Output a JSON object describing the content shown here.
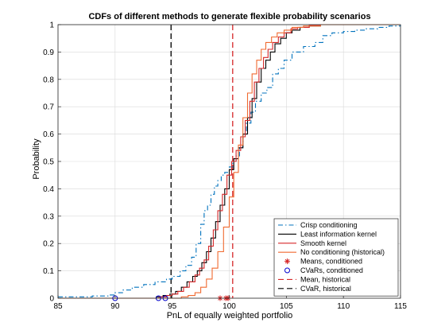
{
  "chart_data": {
    "type": "line",
    "title": "CDFs of different methods to generate flexible probability scenarios",
    "xlabel": "PnL of equally weighted portfolio",
    "ylabel": "Probability",
    "xlim": [
      85,
      115
    ],
    "ylim": [
      0,
      1
    ],
    "xticks": [
      "85",
      "90",
      "95",
      "100",
      "105",
      "110",
      "115"
    ],
    "yticks": [
      "0",
      "0.1",
      "0.2",
      "0.3",
      "0.4",
      "0.5",
      "0.6",
      "0.7",
      "0.8",
      "0.9",
      "1"
    ],
    "grid": true,
    "legend_position": "bottom-right",
    "series": [
      {
        "name": "Crisp conditioning",
        "color": "#0072BD",
        "style": "dash-dot",
        "points": [
          [
            85,
            0.005
          ],
          [
            88,
            0.008
          ],
          [
            89.5,
            0.012
          ],
          [
            90,
            0.02
          ],
          [
            90.7,
            0.03
          ],
          [
            91.5,
            0.04
          ],
          [
            92.5,
            0.05
          ],
          [
            93.5,
            0.06
          ],
          [
            94.5,
            0.07
          ],
          [
            95,
            0.08
          ],
          [
            95.7,
            0.1
          ],
          [
            96.2,
            0.12
          ],
          [
            96.7,
            0.15
          ],
          [
            97.1,
            0.2
          ],
          [
            97.5,
            0.27
          ],
          [
            97.8,
            0.32
          ],
          [
            98.1,
            0.34
          ],
          [
            98.4,
            0.38
          ],
          [
            98.7,
            0.41
          ],
          [
            99,
            0.43
          ],
          [
            99.3,
            0.45
          ],
          [
            99.6,
            0.46
          ],
          [
            100,
            0.48
          ],
          [
            100.3,
            0.5
          ],
          [
            100.6,
            0.52
          ],
          [
            100.9,
            0.55
          ],
          [
            101.2,
            0.6
          ],
          [
            101.5,
            0.64
          ],
          [
            101.9,
            0.68
          ],
          [
            102.3,
            0.72
          ],
          [
            102.8,
            0.75
          ],
          [
            103.3,
            0.77
          ],
          [
            103.8,
            0.82
          ],
          [
            104.3,
            0.84
          ],
          [
            104.8,
            0.87
          ],
          [
            105.5,
            0.9
          ],
          [
            106.5,
            0.92
          ],
          [
            107.5,
            0.935
          ],
          [
            108.2,
            0.96
          ],
          [
            109,
            0.97
          ],
          [
            110,
            0.975
          ],
          [
            111,
            0.98
          ],
          [
            112,
            0.985
          ],
          [
            113,
            0.99
          ],
          [
            114,
            0.995
          ],
          [
            115,
            1
          ]
        ]
      },
      {
        "name": "Least information kernel",
        "color": "#000000",
        "style": "solid",
        "points": [
          [
            85,
            0
          ],
          [
            93,
            0
          ],
          [
            93.6,
            0.005
          ],
          [
            94.2,
            0.01
          ],
          [
            94.8,
            0.015
          ],
          [
            95.3,
            0.025
          ],
          [
            95.8,
            0.04
          ],
          [
            96.3,
            0.06
          ],
          [
            96.8,
            0.08
          ],
          [
            97.2,
            0.1
          ],
          [
            97.6,
            0.13
          ],
          [
            98,
            0.17
          ],
          [
            98.4,
            0.22
          ],
          [
            98.8,
            0.28
          ],
          [
            99.2,
            0.34
          ],
          [
            99.6,
            0.4
          ],
          [
            100,
            0.47
          ],
          [
            100.4,
            0.51
          ],
          [
            100.8,
            0.55
          ],
          [
            101.2,
            0.6
          ],
          [
            101.6,
            0.66
          ],
          [
            102,
            0.73
          ],
          [
            102.4,
            0.79
          ],
          [
            102.8,
            0.84
          ],
          [
            103.2,
            0.87
          ],
          [
            103.6,
            0.9
          ],
          [
            104,
            0.93
          ],
          [
            104.5,
            0.95
          ],
          [
            105,
            0.97
          ],
          [
            105.5,
            0.98
          ],
          [
            106.2,
            0.99
          ],
          [
            107,
            0.995
          ],
          [
            108,
            1
          ],
          [
            115,
            1
          ]
        ]
      },
      {
        "name": "Smooth kernel",
        "color": "#D62728",
        "style": "solid",
        "points": [
          [
            85,
            0
          ],
          [
            93.3,
            0
          ],
          [
            93.9,
            0.005
          ],
          [
            94.5,
            0.01
          ],
          [
            95,
            0.015
          ],
          [
            95.5,
            0.025
          ],
          [
            96,
            0.04
          ],
          [
            96.5,
            0.06
          ],
          [
            97,
            0.085
          ],
          [
            97.4,
            0.11
          ],
          [
            97.8,
            0.14
          ],
          [
            98.2,
            0.19
          ],
          [
            98.6,
            0.25
          ],
          [
            99,
            0.32
          ],
          [
            99.4,
            0.38
          ],
          [
            99.8,
            0.45
          ],
          [
            100.2,
            0.5
          ],
          [
            100.6,
            0.54
          ],
          [
            101,
            0.59
          ],
          [
            101.4,
            0.65
          ],
          [
            101.8,
            0.72
          ],
          [
            102.2,
            0.79
          ],
          [
            102.6,
            0.84
          ],
          [
            103,
            0.88
          ],
          [
            103.4,
            0.91
          ],
          [
            103.8,
            0.935
          ],
          [
            104.3,
            0.955
          ],
          [
            104.8,
            0.97
          ],
          [
            105.4,
            0.985
          ],
          [
            106,
            0.99
          ],
          [
            107,
            0.997
          ],
          [
            108,
            1
          ],
          [
            115,
            1
          ]
        ]
      },
      {
        "name": "No conditioning (historical)",
        "color": "#F06A30",
        "style": "solid",
        "points": [
          [
            85,
            0
          ],
          [
            95.2,
            0
          ],
          [
            95.8,
            0.005
          ],
          [
            96.4,
            0.01
          ],
          [
            97,
            0.02
          ],
          [
            97.5,
            0.04
          ],
          [
            98,
            0.07
          ],
          [
            98.5,
            0.11
          ],
          [
            99,
            0.17
          ],
          [
            99.5,
            0.26
          ],
          [
            100,
            0.37
          ],
          [
            100.4,
            0.46
          ],
          [
            100.8,
            0.56
          ],
          [
            101.2,
            0.66
          ],
          [
            101.6,
            0.75
          ],
          [
            102,
            0.82
          ],
          [
            102.4,
            0.87
          ],
          [
            102.8,
            0.91
          ],
          [
            103.2,
            0.935
          ],
          [
            103.7,
            0.955
          ],
          [
            104.2,
            0.97
          ],
          [
            104.8,
            0.98
          ],
          [
            105.5,
            0.99
          ],
          [
            106.5,
            0.995
          ],
          [
            108,
            1
          ],
          [
            115,
            1
          ]
        ]
      }
    ],
    "markers": [
      {
        "name": "Means, conditioned",
        "color": "#D62728",
        "symbol": "asterisk",
        "x": [
          99.2,
          99.7,
          99.9
        ]
      },
      {
        "name": "CVaRs, conditioned",
        "color": "#0000CC",
        "symbol": "circle",
        "x": [
          90,
          93.8,
          94.4
        ]
      }
    ],
    "vlines": [
      {
        "name": "Mean, historical",
        "color": "#D62728",
        "style": "dashed",
        "x": 100.3
      },
      {
        "name": "CVaR, historical",
        "color": "#000000",
        "style": "dashed",
        "x": 94.9
      }
    ]
  }
}
